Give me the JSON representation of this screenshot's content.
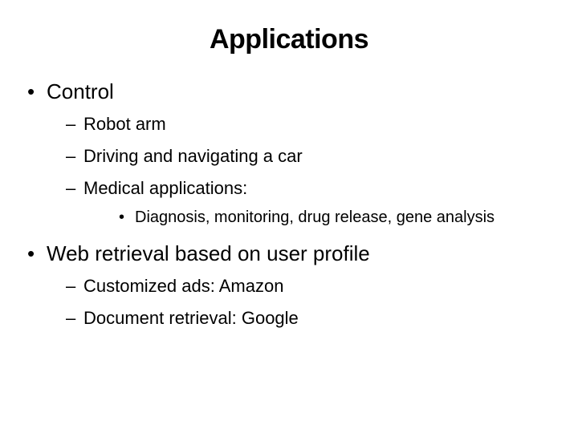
{
  "slide": {
    "title": "Applications",
    "background_color": "#ffffff",
    "text_color": "#000000",
    "title_fontsize": 34,
    "level1_fontsize": 26,
    "level2_fontsize": 22,
    "level3_fontsize": 20,
    "bullets": [
      {
        "text": "Control",
        "children": [
          {
            "text": "Robot arm"
          },
          {
            "text": "Driving and navigating a car"
          },
          {
            "text": "Medical applications:",
            "children": [
              {
                "text": "Diagnosis, monitoring, drug release, gene analysis"
              }
            ]
          }
        ]
      },
      {
        "text": "Web retrieval based on user profile",
        "children": [
          {
            "text": "Customized ads:  Amazon"
          },
          {
            "text": "Document retrieval: Google"
          }
        ]
      }
    ]
  }
}
